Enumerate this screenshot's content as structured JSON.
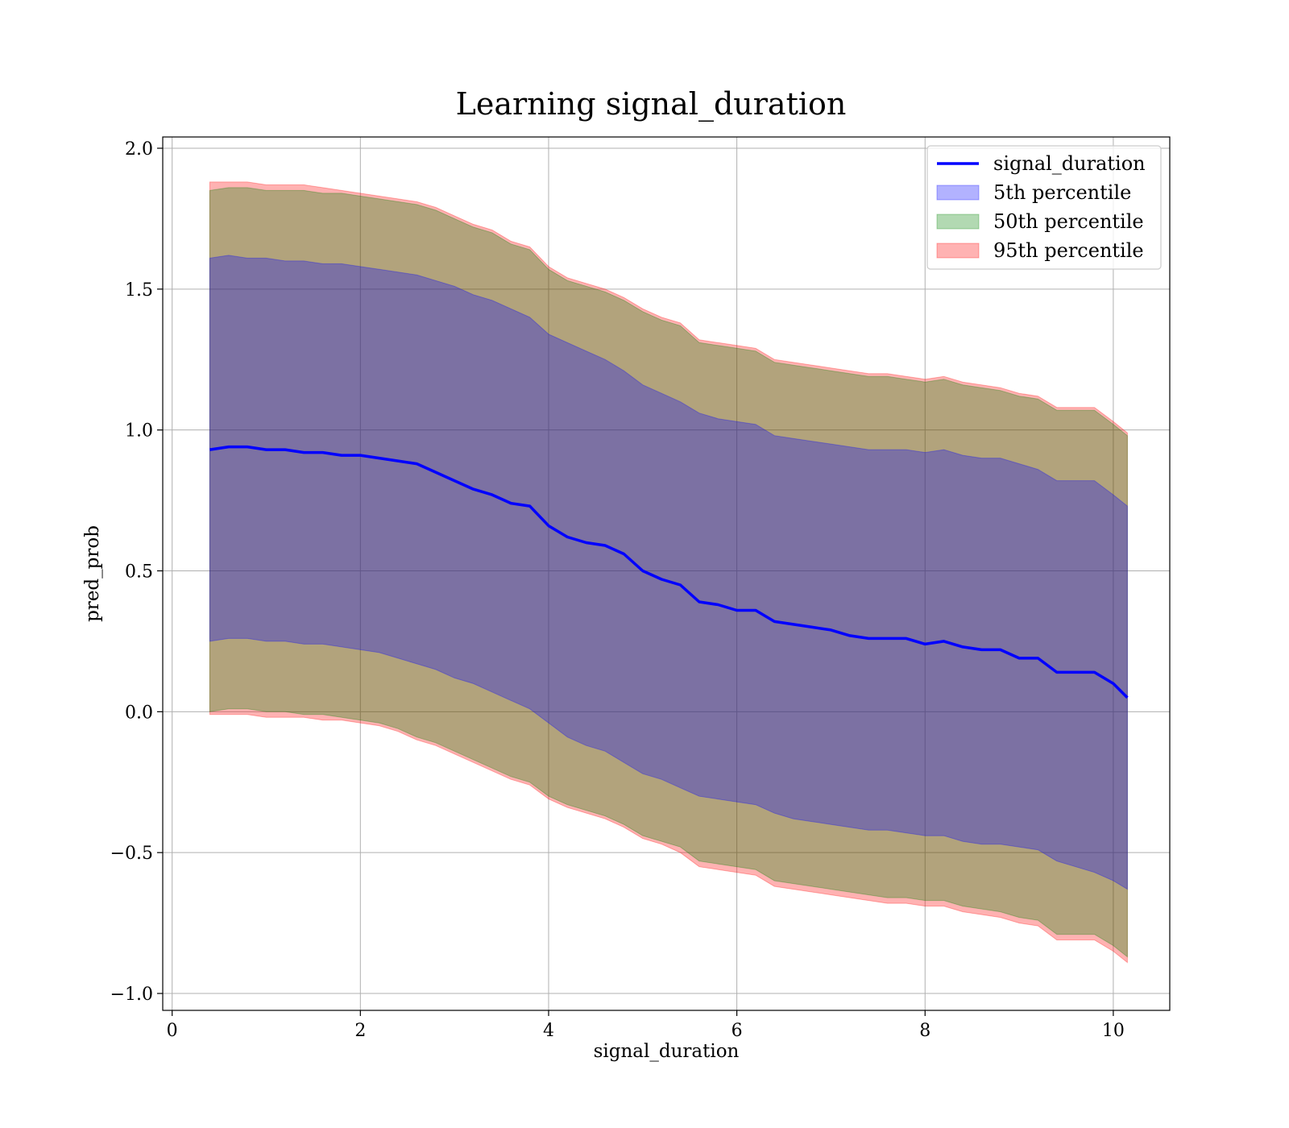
{
  "chart_data": {
    "type": "area",
    "title": "Learning signal_duration",
    "xlabel": "signal_duration",
    "ylabel": "pred_prob",
    "xlim": [
      -0.1,
      10.6
    ],
    "ylim": [
      -1.06,
      2.04
    ],
    "xticks": [
      0,
      2,
      4,
      6,
      8,
      10
    ],
    "xtick_labels": [
      "0",
      "2",
      "4",
      "6",
      "8",
      "10"
    ],
    "yticks": [
      -1.0,
      -0.5,
      0.0,
      0.5,
      1.0,
      1.5,
      2.0
    ],
    "ytick_labels": [
      "−1.0",
      "−0.5",
      "0.0",
      "0.5",
      "1.0",
      "1.5",
      "2.0"
    ],
    "grid": true,
    "legend_position": "top-right",
    "colors": {
      "line": "#0000ff",
      "p5": "#0000ff",
      "p50": "#008000",
      "p95": "#ff0000"
    },
    "x": [
      0.4,
      0.6,
      0.8,
      1.0,
      1.2,
      1.4,
      1.6,
      1.8,
      2.0,
      2.2,
      2.4,
      2.6,
      2.8,
      3.0,
      3.2,
      3.4,
      3.6,
      3.8,
      4.0,
      4.2,
      4.4,
      4.6,
      4.8,
      5.0,
      5.2,
      5.4,
      5.6,
      5.8,
      6.0,
      6.2,
      6.4,
      6.6,
      6.8,
      7.0,
      7.2,
      7.4,
      7.6,
      7.8,
      8.0,
      8.2,
      8.4,
      8.6,
      8.8,
      9.0,
      9.2,
      9.4,
      9.6,
      9.8,
      10.0,
      10.15
    ],
    "series": [
      {
        "name": "signal_duration",
        "kind": "line",
        "values": [
          0.93,
          0.94,
          0.94,
          0.93,
          0.93,
          0.92,
          0.92,
          0.91,
          0.91,
          0.9,
          0.89,
          0.88,
          0.85,
          0.82,
          0.79,
          0.77,
          0.74,
          0.73,
          0.66,
          0.62,
          0.6,
          0.59,
          0.56,
          0.5,
          0.47,
          0.45,
          0.39,
          0.38,
          0.36,
          0.36,
          0.32,
          0.31,
          0.3,
          0.29,
          0.27,
          0.26,
          0.26,
          0.26,
          0.24,
          0.25,
          0.23,
          0.22,
          0.22,
          0.19,
          0.19,
          0.14,
          0.14,
          0.14,
          0.1,
          0.05
        ]
      },
      {
        "name": "5th percentile",
        "kind": "band",
        "lower": [
          0.25,
          0.26,
          0.26,
          0.25,
          0.25,
          0.24,
          0.24,
          0.23,
          0.22,
          0.21,
          0.19,
          0.17,
          0.15,
          0.12,
          0.1,
          0.07,
          0.04,
          0.01,
          -0.04,
          -0.09,
          -0.12,
          -0.14,
          -0.18,
          -0.22,
          -0.24,
          -0.27,
          -0.3,
          -0.31,
          -0.32,
          -0.33,
          -0.36,
          -0.38,
          -0.39,
          -0.4,
          -0.41,
          -0.42,
          -0.42,
          -0.43,
          -0.44,
          -0.44,
          -0.46,
          -0.47,
          -0.47,
          -0.48,
          -0.49,
          -0.53,
          -0.55,
          -0.57,
          -0.6,
          -0.63
        ],
        "upper": [
          1.61,
          1.62,
          1.61,
          1.61,
          1.6,
          1.6,
          1.59,
          1.59,
          1.58,
          1.57,
          1.56,
          1.55,
          1.53,
          1.51,
          1.48,
          1.46,
          1.43,
          1.4,
          1.34,
          1.31,
          1.28,
          1.25,
          1.21,
          1.16,
          1.13,
          1.1,
          1.06,
          1.04,
          1.03,
          1.02,
          0.98,
          0.97,
          0.96,
          0.95,
          0.94,
          0.93,
          0.93,
          0.93,
          0.92,
          0.93,
          0.91,
          0.9,
          0.9,
          0.88,
          0.86,
          0.82,
          0.82,
          0.82,
          0.77,
          0.73
        ]
      },
      {
        "name": "50th percentile",
        "kind": "band",
        "lower": [
          0.0,
          0.01,
          0.01,
          0.0,
          0.0,
          -0.01,
          -0.01,
          -0.02,
          -0.03,
          -0.04,
          -0.06,
          -0.09,
          -0.11,
          -0.14,
          -0.17,
          -0.2,
          -0.23,
          -0.25,
          -0.3,
          -0.33,
          -0.35,
          -0.37,
          -0.4,
          -0.44,
          -0.46,
          -0.48,
          -0.53,
          -0.54,
          -0.55,
          -0.56,
          -0.6,
          -0.61,
          -0.62,
          -0.63,
          -0.64,
          -0.65,
          -0.66,
          -0.66,
          -0.67,
          -0.67,
          -0.69,
          -0.7,
          -0.71,
          -0.73,
          -0.74,
          -0.79,
          -0.79,
          -0.79,
          -0.83,
          -0.87
        ],
        "upper": [
          1.85,
          1.86,
          1.86,
          1.85,
          1.85,
          1.85,
          1.84,
          1.84,
          1.83,
          1.82,
          1.81,
          1.8,
          1.78,
          1.75,
          1.72,
          1.7,
          1.66,
          1.64,
          1.57,
          1.53,
          1.51,
          1.49,
          1.46,
          1.42,
          1.39,
          1.37,
          1.31,
          1.3,
          1.29,
          1.28,
          1.24,
          1.23,
          1.22,
          1.21,
          1.2,
          1.19,
          1.19,
          1.18,
          1.17,
          1.18,
          1.16,
          1.15,
          1.14,
          1.12,
          1.11,
          1.07,
          1.07,
          1.07,
          1.02,
          0.98
        ]
      },
      {
        "name": "95th percentile",
        "kind": "band",
        "lower": [
          -0.01,
          -0.01,
          -0.01,
          -0.02,
          -0.02,
          -0.02,
          -0.03,
          -0.03,
          -0.04,
          -0.05,
          -0.07,
          -0.1,
          -0.12,
          -0.15,
          -0.18,
          -0.21,
          -0.24,
          -0.26,
          -0.31,
          -0.34,
          -0.36,
          -0.38,
          -0.41,
          -0.45,
          -0.47,
          -0.5,
          -0.55,
          -0.56,
          -0.57,
          -0.58,
          -0.62,
          -0.63,
          -0.64,
          -0.65,
          -0.66,
          -0.67,
          -0.68,
          -0.68,
          -0.69,
          -0.69,
          -0.71,
          -0.72,
          -0.73,
          -0.75,
          -0.76,
          -0.81,
          -0.81,
          -0.81,
          -0.85,
          -0.89
        ],
        "upper": [
          1.88,
          1.88,
          1.88,
          1.87,
          1.87,
          1.87,
          1.86,
          1.85,
          1.84,
          1.83,
          1.82,
          1.81,
          1.79,
          1.76,
          1.73,
          1.71,
          1.67,
          1.65,
          1.58,
          1.54,
          1.52,
          1.5,
          1.47,
          1.43,
          1.4,
          1.38,
          1.32,
          1.31,
          1.3,
          1.29,
          1.25,
          1.24,
          1.23,
          1.22,
          1.21,
          1.2,
          1.2,
          1.19,
          1.18,
          1.19,
          1.17,
          1.16,
          1.15,
          1.13,
          1.12,
          1.08,
          1.08,
          1.08,
          1.03,
          0.99
        ]
      }
    ]
  }
}
